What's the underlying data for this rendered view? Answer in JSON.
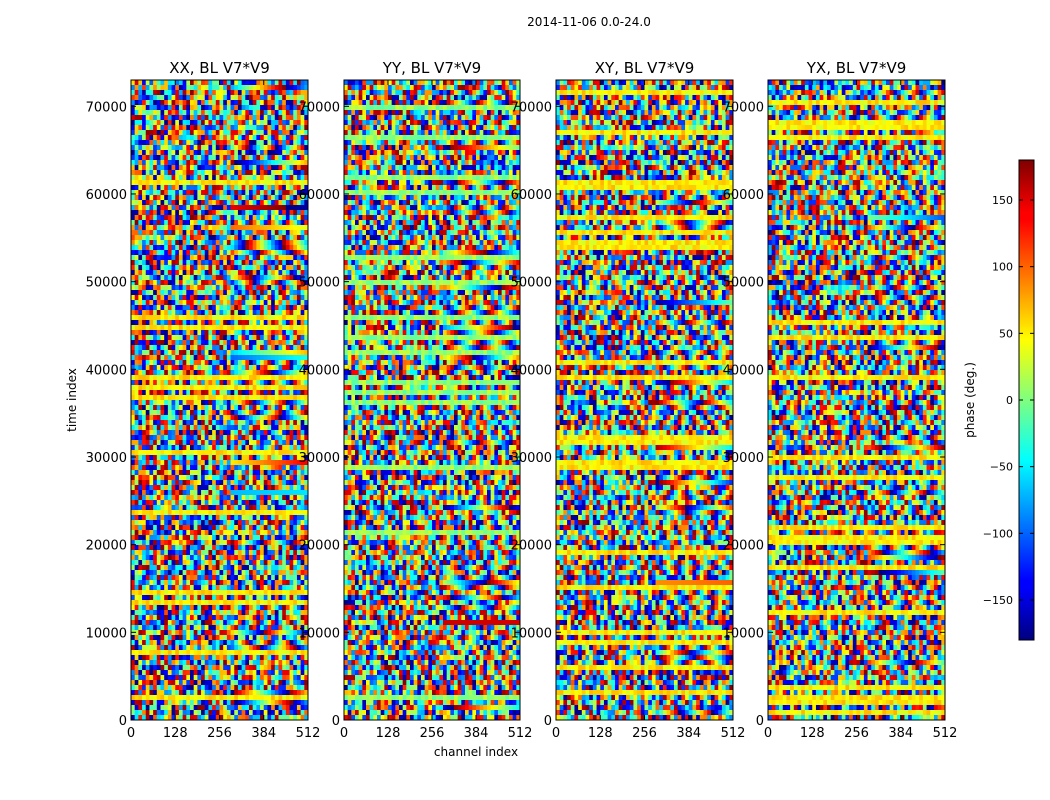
{
  "chart_data": {
    "type": "heatmap",
    "suptitle": "2014-11-06 0.0-24.0",
    "xlabel": "channel index",
    "ylabel": "time index",
    "xlim": [
      0,
      512
    ],
    "ylim": [
      0,
      73000
    ],
    "xticks": [
      0,
      128,
      256,
      384,
      512
    ],
    "yticks": [
      0,
      10000,
      20000,
      30000,
      40000,
      50000,
      60000,
      70000
    ],
    "panels": [
      {
        "title": "XX, BL V7*V9"
      },
      {
        "title": "YY, BL V7*V9"
      },
      {
        "title": "XY, BL V7*V9"
      },
      {
        "title": "YX, BL V7*V9"
      }
    ],
    "colorbar": {
      "label": "phase (deg.)",
      "range": [
        -180,
        180
      ],
      "ticks": [
        150,
        100,
        50,
        0,
        -50,
        -100,
        -150
      ],
      "tick_labels": [
        "150",
        "100",
        "50",
        "0",
        "−50",
        "−100",
        "−150"
      ],
      "colormap": "jet"
    }
  }
}
